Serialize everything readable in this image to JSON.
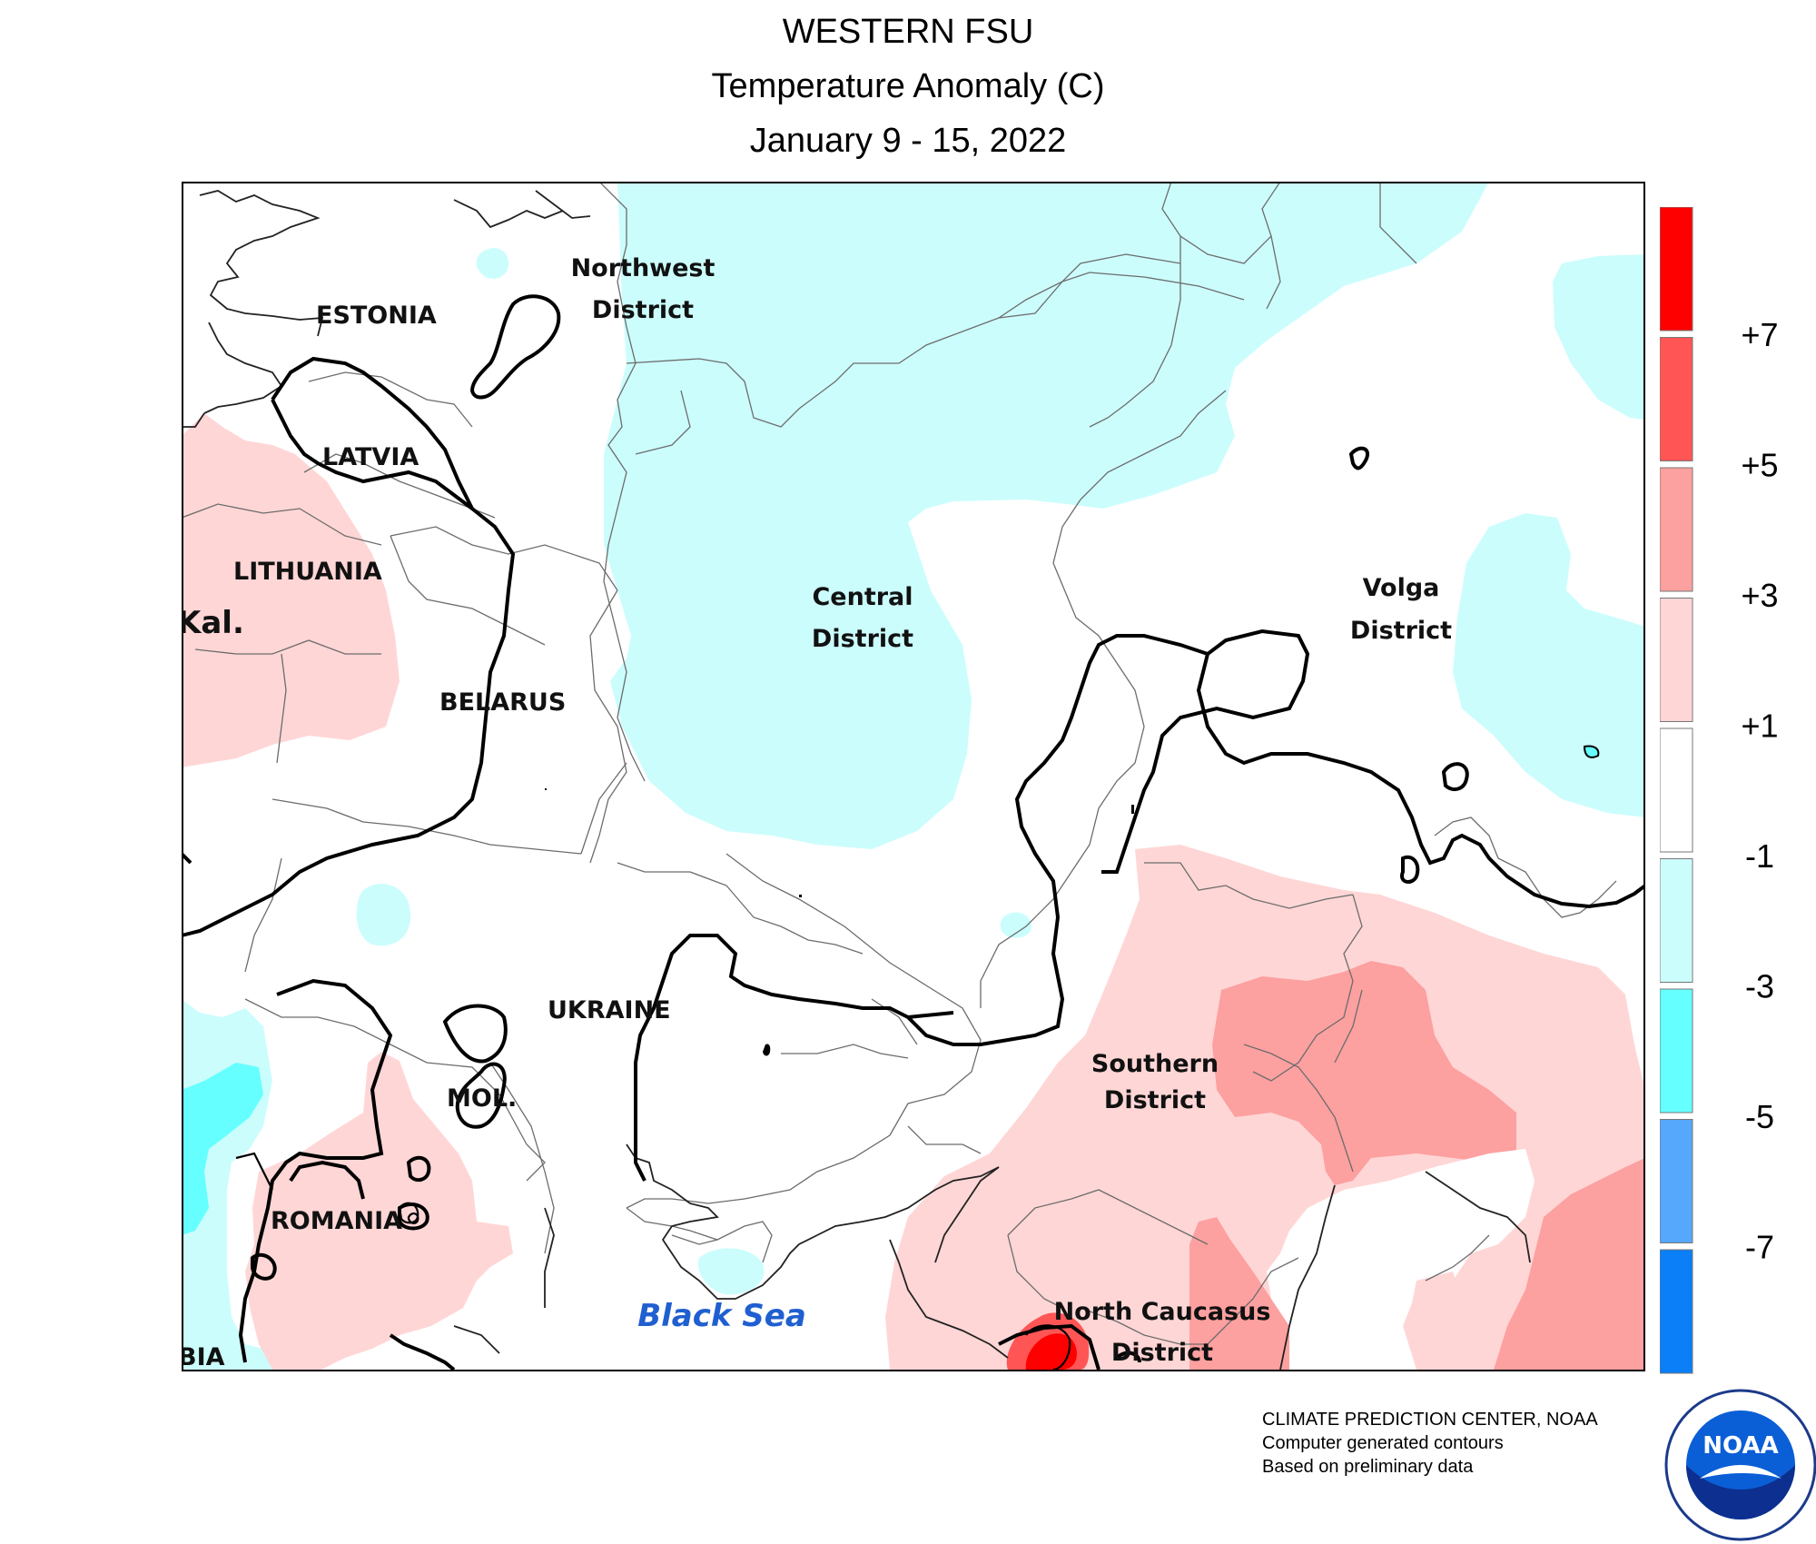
{
  "header": {
    "region": "WESTERN FSU",
    "variable": "Temperature Anomaly (C)",
    "period": "January 9 - 15, 2022"
  },
  "map_labels": {
    "estonia": "ESTONIA",
    "latvia": "LATVIA",
    "lithuania": "LITHUANIA",
    "kaliningrad": "Kal.",
    "belarus": "BELARUS",
    "ukraine": "UKRAINE",
    "moldova": "MOL.",
    "romania": "ROMANIA",
    "serbia": "BIA",
    "northwest_1": "Northwest",
    "northwest_2": "District",
    "central_1": "Central",
    "central_2": "District",
    "volga_1": "Volga",
    "volga_2": "District",
    "southern_1": "Southern",
    "southern_2": "District",
    "ncaucasus_1": "North Caucasus",
    "ncaucasus_2": "District",
    "black_sea": "Black Sea"
  },
  "legend": {
    "colors": [
      "#ff0000",
      "#ff5555",
      "#fda0a0",
      "#ffd6d6",
      "#ffffff",
      "#ccfdfd",
      "#66ffff",
      "#55a8fc",
      "#0a7ff8"
    ],
    "labels": [
      "+7",
      "+5",
      "+3",
      "+1",
      "-1",
      "-3",
      "-5",
      "-7"
    ]
  },
  "colors": {
    "anomaly_minus_1_to_minus_3": "#ccfdfd",
    "anomaly_minus_3_to_minus_5": "#66ffff",
    "anomaly_plus_1_to_plus_3": "#ffd6d6",
    "anomaly_plus_3_to_plus_5": "#fda0a0",
    "anomaly_plus_5_to_plus_7": "#ff5555",
    "anomaly_above_plus_7": "#ff0000"
  },
  "credits": {
    "line1": "CLIMATE PREDICTION CENTER, NOAA",
    "line2": "Computer generated contours",
    "line3": "Based on preliminary data"
  },
  "logo": {
    "text": "NOAA",
    "icon": "noaa-logo-icon"
  }
}
